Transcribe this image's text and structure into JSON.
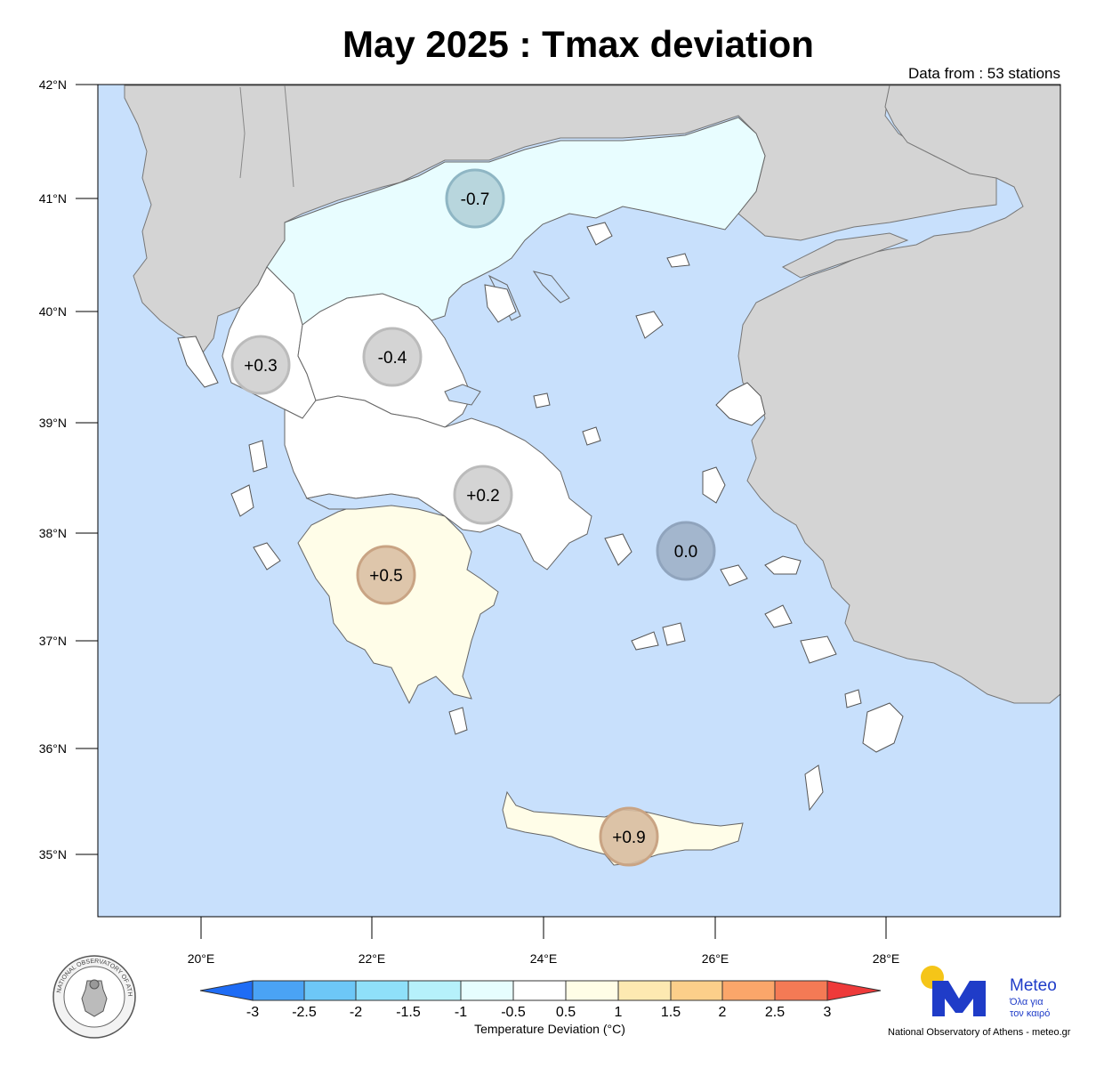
{
  "title": "May 2025 : Tmax deviation",
  "stations_note": "Data from : 53 stations",
  "colors": {
    "sea": "#c8e0fc",
    "neighbor_land": "#d4d4d4",
    "border": "#666666"
  },
  "lat_ticks": [
    "42°N",
    "41°N",
    "40°N",
    "39°N",
    "38°N",
    "37°N",
    "36°N",
    "35°N"
  ],
  "lon_ticks": [
    "20°E",
    "22°E",
    "24°E",
    "26°E",
    "28°E"
  ],
  "regions": [
    {
      "name": "Macedonia-Thrace",
      "value": "-0.7",
      "fill": "#e8fdff"
    },
    {
      "name": "Epirus",
      "value": "+0.3",
      "fill": "#ffffff"
    },
    {
      "name": "Thessaly",
      "value": "-0.4",
      "fill": "#ffffff"
    },
    {
      "name": "Central Greece",
      "value": "+0.2",
      "fill": "#ffffff"
    },
    {
      "name": "Peloponnese",
      "value": "+0.5",
      "fill": "#fffde8"
    },
    {
      "name": "Aegean",
      "value": "0.0",
      "fill": "#c8e0fc"
    },
    {
      "name": "Crete",
      "value": "+0.9",
      "fill": "#fffde8"
    }
  ],
  "colorbar": {
    "title": "Temperature Deviation (°C)",
    "labels": [
      "-3",
      "-2.5",
      "-2",
      "-1.5",
      "-1",
      "-0.5",
      "0.5",
      "1",
      "1.5",
      "2",
      "2.5",
      "3"
    ],
    "colors": [
      "#1e6cf5",
      "#4aa3f5",
      "#6dc7f7",
      "#8fe0f9",
      "#b6f1fb",
      "#e6fdfe",
      "#ffffff",
      "#fffde6",
      "#fde9b1",
      "#fccf8a",
      "#fba66a",
      "#f47a55",
      "#ee3a3a"
    ]
  },
  "branding": {
    "seal_text": "NATIONAL OBSERVATORY OF ATHENS",
    "meteo_name": "Meteo",
    "meteo_tag_line1": "Όλα για",
    "meteo_tag_line2": "τον καιρό",
    "credit": "National Observatory of Athens - meteo.gr"
  }
}
